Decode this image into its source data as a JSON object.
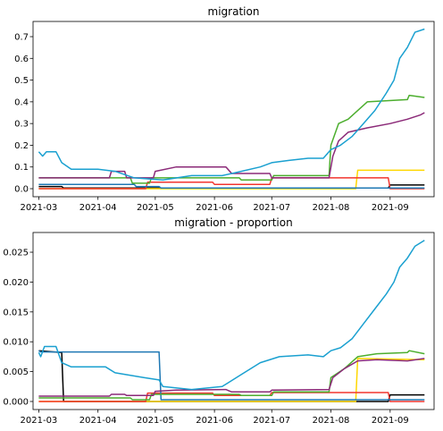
{
  "chart_data": [
    {
      "type": "line",
      "title": "migration",
      "xlabel": "",
      "ylabel": "",
      "x_range": [
        "2021-02-26",
        "2021-09-24"
      ],
      "ylim": [
        -0.037,
        0.77
      ],
      "x_ticks": [
        "2021-03-01",
        "2021-04-01",
        "2021-05-01",
        "2021-06-01",
        "2021-07-01",
        "2021-08-01",
        "2021-09-01"
      ],
      "x_tick_labels": [
        "2021-03",
        "2021-04",
        "2021-05",
        "2021-06",
        "2021-07",
        "2021-08",
        "2021-09"
      ],
      "y_ticks": [
        0.0,
        0.1,
        0.2,
        0.3,
        0.4,
        0.5,
        0.6,
        0.7
      ],
      "y_tick_labels": [
        "0.0",
        "0.1",
        "0.2",
        "0.3",
        "0.4",
        "0.5",
        "0.6",
        "0.7"
      ],
      "grid": false,
      "legend": "none",
      "series": [
        {
          "color": "#000000",
          "points": [
            [
              "2021-03-01",
              0.01
            ],
            [
              "2021-03-13",
              0.01
            ],
            [
              "2021-03-14",
              0.003
            ],
            [
              "2021-08-31",
              0.003
            ],
            [
              "2021-09-01",
              0.017
            ],
            [
              "2021-09-19",
              0.017
            ]
          ]
        },
        {
          "color": "#ffd700",
          "points": [
            [
              "2021-03-01",
              0.0
            ],
            [
              "2021-08-14",
              0.0
            ],
            [
              "2021-08-15",
              0.085
            ],
            [
              "2021-09-19",
              0.085
            ]
          ]
        },
        {
          "color": "#f2352f",
          "points": [
            [
              "2021-03-01",
              0.0
            ],
            [
              "2021-04-26",
              0.0
            ],
            [
              "2021-04-27",
              0.03
            ],
            [
              "2021-05-31",
              0.03
            ],
            [
              "2021-06-01",
              0.02
            ],
            [
              "2021-06-30",
              0.02
            ],
            [
              "2021-07-01",
              0.05
            ],
            [
              "2021-08-31",
              0.05
            ],
            [
              "2021-09-01",
              0.0
            ],
            [
              "2021-09-19",
              0.0
            ]
          ]
        },
        {
          "color": "#1f78b4",
          "points": [
            [
              "2021-03-01",
              0.02
            ],
            [
              "2021-04-20",
              0.02
            ],
            [
              "2021-04-21",
              0.01
            ],
            [
              "2021-05-03",
              0.01
            ],
            [
              "2021-05-04",
              0.003
            ],
            [
              "2021-09-19",
              0.003
            ]
          ]
        },
        {
          "color": "#4cae2e",
          "points": [
            [
              "2021-03-01",
              0.05
            ],
            [
              "2021-04-18",
              0.05
            ],
            [
              "2021-04-19",
              0.025
            ],
            [
              "2021-04-28",
              0.025
            ],
            [
              "2021-04-29",
              0.05
            ],
            [
              "2021-06-14",
              0.05
            ],
            [
              "2021-06-15",
              0.04
            ],
            [
              "2021-07-01",
              0.04
            ],
            [
              "2021-07-02",
              0.06
            ],
            [
              "2021-07-31",
              0.06
            ],
            [
              "2021-08-01",
              0.2
            ],
            [
              "2021-08-05",
              0.3
            ],
            [
              "2021-08-10",
              0.32
            ],
            [
              "2021-08-20",
              0.4
            ],
            [
              "2021-09-10",
              0.41
            ],
            [
              "2021-09-11",
              0.43
            ],
            [
              "2021-09-19",
              0.42
            ]
          ]
        },
        {
          "color": "#8b2a78",
          "points": [
            [
              "2021-03-01",
              0.05
            ],
            [
              "2021-04-07",
              0.05
            ],
            [
              "2021-04-08",
              0.08
            ],
            [
              "2021-04-15",
              0.08
            ],
            [
              "2021-04-16",
              0.05
            ],
            [
              "2021-04-30",
              0.05
            ],
            [
              "2021-05-01",
              0.08
            ],
            [
              "2021-05-12",
              0.1
            ],
            [
              "2021-06-07",
              0.1
            ],
            [
              "2021-06-10",
              0.07
            ],
            [
              "2021-06-30",
              0.07
            ],
            [
              "2021-07-01",
              0.05
            ],
            [
              "2021-07-31",
              0.05
            ],
            [
              "2021-08-02",
              0.15
            ],
            [
              "2021-08-05",
              0.22
            ],
            [
              "2021-08-10",
              0.26
            ],
            [
              "2021-08-20",
              0.28
            ],
            [
              "2021-09-01",
              0.3
            ],
            [
              "2021-09-10",
              0.32
            ],
            [
              "2021-09-17",
              0.34
            ],
            [
              "2021-09-19",
              0.35
            ]
          ]
        },
        {
          "color": "#1aa0d0",
          "points": [
            [
              "2021-03-01",
              0.17
            ],
            [
              "2021-03-03",
              0.15
            ],
            [
              "2021-03-05",
              0.17
            ],
            [
              "2021-03-10",
              0.17
            ],
            [
              "2021-03-13",
              0.12
            ],
            [
              "2021-03-18",
              0.09
            ],
            [
              "2021-04-01",
              0.09
            ],
            [
              "2021-04-10",
              0.08
            ],
            [
              "2021-04-20",
              0.05
            ],
            [
              "2021-05-05",
              0.04
            ],
            [
              "2021-05-20",
              0.06
            ],
            [
              "2021-06-05",
              0.06
            ],
            [
              "2021-06-15",
              0.08
            ],
            [
              "2021-06-25",
              0.1
            ],
            [
              "2021-07-01",
              0.12
            ],
            [
              "2021-07-10",
              0.13
            ],
            [
              "2021-07-20",
              0.14
            ],
            [
              "2021-07-28",
              0.14
            ],
            [
              "2021-08-01",
              0.18
            ],
            [
              "2021-08-06",
              0.2
            ],
            [
              "2021-08-12",
              0.24
            ],
            [
              "2021-08-18",
              0.3
            ],
            [
              "2021-08-24",
              0.36
            ],
            [
              "2021-08-30",
              0.44
            ],
            [
              "2021-09-03",
              0.5
            ],
            [
              "2021-09-06",
              0.6
            ],
            [
              "2021-09-10",
              0.65
            ],
            [
              "2021-09-14",
              0.72
            ],
            [
              "2021-09-19",
              0.735
            ]
          ]
        }
      ]
    },
    {
      "type": "line",
      "title": "migration - proportion",
      "xlabel": "",
      "ylabel": "",
      "x_range": [
        "2021-02-26",
        "2021-09-24"
      ],
      "ylim": [
        -0.00135,
        0.0283
      ],
      "x_ticks": [
        "2021-03-01",
        "2021-04-01",
        "2021-05-01",
        "2021-06-01",
        "2021-07-01",
        "2021-08-01",
        "2021-09-01"
      ],
      "x_tick_labels": [
        "2021-03",
        "2021-04",
        "2021-05",
        "2021-06",
        "2021-07",
        "2021-08",
        "2021-09"
      ],
      "y_ticks": [
        0.0,
        0.005,
        0.01,
        0.015,
        0.02,
        0.025
      ],
      "y_tick_labels": [
        "0.000",
        "0.005",
        "0.010",
        "0.015",
        "0.020",
        "0.025"
      ],
      "grid": false,
      "legend": "none",
      "series": [
        {
          "color": "#000000",
          "points": [
            [
              "2021-03-01",
              0.0085
            ],
            [
              "2021-03-13",
              0.0082
            ],
            [
              "2021-03-14",
              0.0
            ],
            [
              "2021-08-31",
              0.0
            ],
            [
              "2021-09-01",
              0.0011
            ],
            [
              "2021-09-19",
              0.0011
            ]
          ]
        },
        {
          "color": "#ffd700",
          "points": [
            [
              "2021-03-01",
              0.0
            ],
            [
              "2021-08-14",
              0.0
            ],
            [
              "2021-08-15",
              0.0072
            ],
            [
              "2021-09-19",
              0.007
            ]
          ]
        },
        {
          "color": "#f2352f",
          "points": [
            [
              "2021-03-01",
              0.0
            ],
            [
              "2021-04-26",
              0.0
            ],
            [
              "2021-04-27",
              0.0014
            ],
            [
              "2021-05-31",
              0.0014
            ],
            [
              "2021-06-01",
              0.001
            ],
            [
              "2021-06-30",
              0.001
            ],
            [
              "2021-07-01",
              0.0015
            ],
            [
              "2021-08-31",
              0.0015
            ],
            [
              "2021-09-01",
              0.0
            ],
            [
              "2021-09-19",
              0.0
            ]
          ]
        },
        {
          "color": "#1f78b4",
          "points": [
            [
              "2021-03-01",
              0.0085
            ],
            [
              "2021-03-02",
              0.0083
            ],
            [
              "2021-05-03",
              0.0083
            ],
            [
              "2021-05-04",
              0.0003
            ],
            [
              "2021-09-19",
              0.0003
            ]
          ]
        },
        {
          "color": "#4cae2e",
          "points": [
            [
              "2021-03-01",
              0.0006
            ],
            [
              "2021-04-18",
              0.0006
            ],
            [
              "2021-04-19",
              0.0003
            ],
            [
              "2021-04-28",
              0.0003
            ],
            [
              "2021-04-29",
              0.0012
            ],
            [
              "2021-06-14",
              0.0012
            ],
            [
              "2021-06-15",
              0.001
            ],
            [
              "2021-07-01",
              0.001
            ],
            [
              "2021-07-02",
              0.0016
            ],
            [
              "2021-07-31",
              0.0016
            ],
            [
              "2021-08-01",
              0.004
            ],
            [
              "2021-08-08",
              0.0055
            ],
            [
              "2021-08-15",
              0.0075
            ],
            [
              "2021-08-25",
              0.008
            ],
            [
              "2021-09-10",
              0.0082
            ],
            [
              "2021-09-11",
              0.0085
            ],
            [
              "2021-09-19",
              0.008
            ]
          ]
        },
        {
          "color": "#8b2a78",
          "points": [
            [
              "2021-03-01",
              0.0009
            ],
            [
              "2021-04-07",
              0.0009
            ],
            [
              "2021-04-08",
              0.0012
            ],
            [
              "2021-04-15",
              0.0012
            ],
            [
              "2021-04-16",
              0.001
            ],
            [
              "2021-04-30",
              0.001
            ],
            [
              "2021-05-01",
              0.0017
            ],
            [
              "2021-05-12",
              0.0019
            ],
            [
              "2021-06-07",
              0.002
            ],
            [
              "2021-06-10",
              0.0016
            ],
            [
              "2021-06-30",
              0.0016
            ],
            [
              "2021-07-01",
              0.0019
            ],
            [
              "2021-07-31",
              0.002
            ],
            [
              "2021-08-02",
              0.004
            ],
            [
              "2021-08-08",
              0.0055
            ],
            [
              "2021-08-15",
              0.0068
            ],
            [
              "2021-08-25",
              0.007
            ],
            [
              "2021-09-10",
              0.0068
            ],
            [
              "2021-09-19",
              0.0072
            ]
          ]
        },
        {
          "color": "#1aa0d0",
          "points": [
            [
              "2021-03-01",
              0.0082
            ],
            [
              "2021-03-02",
              0.0075
            ],
            [
              "2021-03-04",
              0.0092
            ],
            [
              "2021-03-10",
              0.0092
            ],
            [
              "2021-03-13",
              0.0065
            ],
            [
              "2021-03-18",
              0.0058
            ],
            [
              "2021-04-05",
              0.0058
            ],
            [
              "2021-04-10",
              0.0048
            ],
            [
              "2021-04-25",
              0.004
            ],
            [
              "2021-05-03",
              0.0036
            ],
            [
              "2021-05-05",
              0.0025
            ],
            [
              "2021-05-20",
              0.002
            ],
            [
              "2021-06-05",
              0.0025
            ],
            [
              "2021-06-15",
              0.0045
            ],
            [
              "2021-06-25",
              0.0065
            ],
            [
              "2021-07-05",
              0.0075
            ],
            [
              "2021-07-20",
              0.0078
            ],
            [
              "2021-07-28",
              0.0075
            ],
            [
              "2021-08-01",
              0.0085
            ],
            [
              "2021-08-06",
              0.009
            ],
            [
              "2021-08-12",
              0.0105
            ],
            [
              "2021-08-18",
              0.013
            ],
            [
              "2021-08-24",
              0.0155
            ],
            [
              "2021-08-30",
              0.018
            ],
            [
              "2021-09-03",
              0.02
            ],
            [
              "2021-09-06",
              0.0225
            ],
            [
              "2021-09-10",
              0.024
            ],
            [
              "2021-09-14",
              0.026
            ],
            [
              "2021-09-19",
              0.027
            ]
          ]
        }
      ]
    }
  ]
}
